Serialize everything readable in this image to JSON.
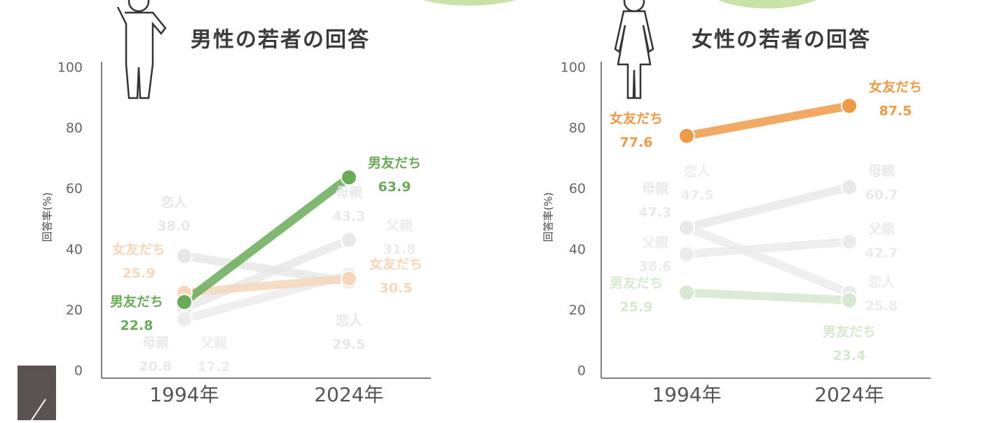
{
  "chart_data": [
    {
      "type": "line",
      "title": "男性の若者の回答",
      "y_label": "回答率(%)",
      "x": [
        "1994年",
        "2024年"
      ],
      "ylim": [
        0,
        100
      ],
      "yticks": [
        0,
        20,
        40,
        60,
        80,
        100
      ],
      "series": [
        {
          "name": "母親",
          "color": "#e9e9e9",
          "values": [
            20.8,
            43.3
          ]
        },
        {
          "name": "父親",
          "color": "#ececec",
          "values": [
            17.2,
            31.8
          ]
        },
        {
          "name": "恋人",
          "color": "#e7e7e7",
          "values": [
            38.0,
            29.5
          ],
          "value_labels": [
            "38.0",
            "29.5"
          ]
        },
        {
          "name": "女友だち",
          "color": "#f5d7bb",
          "values": [
            25.9,
            30.5
          ]
        },
        {
          "name": "男友だち",
          "color": "#6aab5a",
          "values": [
            22.8,
            63.9
          ]
        }
      ]
    },
    {
      "type": "line",
      "title": "女性の若者の回答",
      "y_label": "回答率(%)",
      "x": [
        "1994年",
        "2024年"
      ],
      "ylim": [
        0,
        100
      ],
      "yticks": [
        0,
        20,
        40,
        60,
        80,
        100
      ],
      "series": [
        {
          "name": "恋人",
          "color": "#ececec",
          "values": [
            47.5,
            25.8
          ]
        },
        {
          "name": "母親",
          "color": "#e9e9e9",
          "values": [
            47.3,
            60.7
          ]
        },
        {
          "name": "父親",
          "color": "#ebebeb",
          "values": [
            38.6,
            42.7
          ]
        },
        {
          "name": "男友だち",
          "color": "#d6e8cf",
          "values": [
            25.9,
            23.4
          ]
        },
        {
          "name": "女友だち",
          "color": "#ee9a48",
          "values": [
            77.6,
            87.5
          ]
        }
      ]
    }
  ]
}
